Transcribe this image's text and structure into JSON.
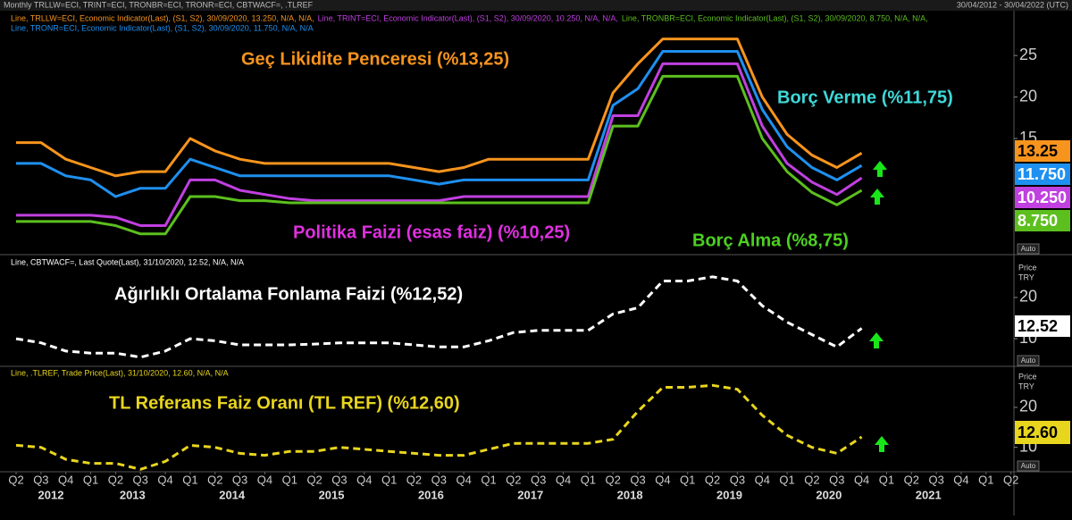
{
  "header": {
    "title": "Monthly TRLLW=ECI, TRINT=ECI, TRONBR=ECI, TRONR=ECI, CBTWACF=, .TLREF",
    "date_range": "30/04/2012 - 30/04/2022 (UTC)"
  },
  "x_axis": {
    "xlim": [
      2012.16,
      2022.28
    ],
    "xticks": [
      {
        "value": 2012.25,
        "label": "Q2"
      },
      {
        "value": 2012.5,
        "label": "Q3"
      },
      {
        "value": 2012.75,
        "label": "Q4"
      },
      {
        "value": 2013,
        "label": "Q1"
      },
      {
        "value": 2013.25,
        "label": "Q2"
      },
      {
        "value": 2013.5,
        "label": "Q3"
      },
      {
        "value": 2013.75,
        "label": "Q4"
      },
      {
        "value": 2014,
        "label": "Q1"
      },
      {
        "value": 2014.25,
        "label": "Q2"
      },
      {
        "value": 2014.5,
        "label": "Q3"
      },
      {
        "value": 2014.75,
        "label": "Q4"
      },
      {
        "value": 2015,
        "label": "Q1"
      },
      {
        "value": 2015.25,
        "label": "Q2"
      },
      {
        "value": 2015.5,
        "label": "Q3"
      },
      {
        "value": 2015.75,
        "label": "Q4"
      },
      {
        "value": 2016,
        "label": "Q1"
      },
      {
        "value": 2016.25,
        "label": "Q2"
      },
      {
        "value": 2016.5,
        "label": "Q3"
      },
      {
        "value": 2016.75,
        "label": "Q4"
      },
      {
        "value": 2017,
        "label": "Q1"
      },
      {
        "value": 2017.25,
        "label": "Q2"
      },
      {
        "value": 2017.5,
        "label": "Q3"
      },
      {
        "value": 2017.75,
        "label": "Q4"
      },
      {
        "value": 2018,
        "label": "Q1"
      },
      {
        "value": 2018.25,
        "label": "Q2"
      },
      {
        "value": 2018.5,
        "label": "Q3"
      },
      {
        "value": 2018.75,
        "label": "Q4"
      },
      {
        "value": 2019,
        "label": "Q1"
      },
      {
        "value": 2019.25,
        "label": "Q2"
      },
      {
        "value": 2019.5,
        "label": "Q3"
      },
      {
        "value": 2019.75,
        "label": "Q4"
      },
      {
        "value": 2020,
        "label": "Q1"
      },
      {
        "value": 2020.25,
        "label": "Q2"
      },
      {
        "value": 2020.5,
        "label": "Q3"
      },
      {
        "value": 2020.75,
        "label": "Q4"
      },
      {
        "value": 2021,
        "label": "Q1"
      },
      {
        "value": 2021.25,
        "label": "Q2"
      },
      {
        "value": 2021.5,
        "label": "Q3"
      },
      {
        "value": 2021.75,
        "label": "Q4"
      },
      {
        "value": 2022,
        "label": "Q1"
      },
      {
        "value": 2022.25,
        "label": "Q2"
      }
    ],
    "year_labels": [
      {
        "value": 2012.6,
        "label": "2012"
      },
      {
        "value": 2013.42,
        "label": "2013"
      },
      {
        "value": 2014.42,
        "label": "2014"
      },
      {
        "value": 2015.42,
        "label": "2015"
      },
      {
        "value": 2016.42,
        "label": "2016"
      },
      {
        "value": 2017.42,
        "label": "2017"
      },
      {
        "value": 2018.42,
        "label": "2018"
      },
      {
        "value": 2019.42,
        "label": "2019"
      },
      {
        "value": 2020.42,
        "label": "2020"
      },
      {
        "value": 2021.42,
        "label": "2021"
      }
    ]
  },
  "chart_data": [
    {
      "type": "line",
      "button": "Auto",
      "ylim": [
        1,
        30.4
      ],
      "yticks": [
        15,
        20,
        25
      ],
      "line_style": "solid",
      "x": [
        2012.25,
        2012.5,
        2012.75,
        2013,
        2013.25,
        2013.5,
        2013.75,
        2014,
        2014.25,
        2014.5,
        2014.75,
        2015,
        2015.25,
        2015.5,
        2015.75,
        2016,
        2016.25,
        2016.5,
        2016.75,
        2017,
        2017.25,
        2017.5,
        2017.75,
        2018,
        2018.25,
        2018.5,
        2018.75,
        2019,
        2019.25,
        2019.5,
        2019.75,
        2020,
        2020.25,
        2020.5,
        2020.75
      ],
      "series": [
        {
          "name": "Geç Likidite Penceresi (%13,25)",
          "color": "#f7941d",
          "label_color": "#f7941d",
          "last_label": "13.25",
          "legend_text": "Line, TRLLW=ECI, Economic Indicator(Last), (S1, S2), 30/09/2020, 13.250, N/A, N/A,",
          "values": [
            14.5,
            14.5,
            12.5,
            11.5,
            10.5,
            11,
            11,
            15,
            13.5,
            12.5,
            12,
            12,
            12,
            12,
            12,
            12,
            11.5,
            11,
            11.5,
            12.5,
            12.5,
            12.5,
            12.5,
            12.5,
            20.5,
            24,
            27,
            27,
            27,
            27,
            20,
            15.5,
            13,
            11.5,
            13.25
          ]
        },
        {
          "name": "Politika Faizi (esas faiz) (%10,25)",
          "color": "#c040e0",
          "label_color": "#e030e0",
          "last_label": "10.250",
          "legend_text": "Line, TRINT=ECI, Economic Indicator(Last), (S1, S2), 30/09/2020, 10.250, N/A, N/A,",
          "values": [
            5.75,
            5.75,
            5.75,
            5.75,
            5.5,
            4.5,
            4.5,
            10,
            10,
            8.75,
            8.25,
            7.75,
            7.5,
            7.5,
            7.5,
            7.5,
            7.5,
            7.5,
            8,
            8,
            8,
            8,
            8,
            8,
            17.75,
            17.75,
            24,
            24,
            24,
            24,
            16.5,
            12,
            9.75,
            8.25,
            10.25
          ]
        },
        {
          "name": "Borç Alma  (%8,75)",
          "color": "#5cbf1e",
          "label_color": "#4cd020",
          "last_label": "8.750",
          "legend_text": "Line, TRONBR=ECI, Economic Indicator(Last), (S1, S2), 30/09/2020, 8.750, N/A, N/A,",
          "values": [
            5,
            5,
            5,
            5,
            4.5,
            3.5,
            3.5,
            8,
            8,
            7.5,
            7.5,
            7.25,
            7.25,
            7.25,
            7.25,
            7.25,
            7.25,
            7.25,
            7.25,
            7.25,
            7.25,
            7.25,
            7.25,
            7.25,
            16.5,
            16.5,
            22.5,
            22.5,
            22.5,
            22.5,
            15,
            11,
            8.5,
            7,
            8.75
          ]
        },
        {
          "name": "Borç Verme (%11,75)",
          "color": "#1e90f0",
          "label_color": "#3fd8d8",
          "last_label": "11.750",
          "legend_text": "Line, TRONR=ECI, Economic Indicator(Last), (S1, S2), 30/09/2020, 11.750, N/A, N/A",
          "values": [
            12,
            12,
            10.5,
            10,
            8,
            9,
            9,
            12.5,
            11.5,
            10.5,
            10.5,
            10.5,
            10.5,
            10.5,
            10.5,
            10.5,
            10,
            9.5,
            10,
            10,
            10,
            10,
            10,
            10,
            19,
            21,
            25.5,
            25.5,
            25.5,
            25.5,
            18.5,
            14,
            11.5,
            10,
            11.75
          ]
        }
      ]
    },
    {
      "type": "line",
      "button": "Auto",
      "price_label": "Price",
      "currency_label": "TRY",
      "ylim": [
        3.3,
        29.3
      ],
      "yticks": [
        10,
        20
      ],
      "line_style": "dashed",
      "x": [
        2012.25,
        2012.5,
        2012.75,
        2013,
        2013.25,
        2013.5,
        2013.75,
        2014,
        2014.25,
        2014.5,
        2014.75,
        2015,
        2015.25,
        2015.5,
        2015.75,
        2016,
        2016.25,
        2016.5,
        2016.75,
        2017,
        2017.25,
        2017.5,
        2017.75,
        2018,
        2018.25,
        2018.5,
        2018.75,
        2019,
        2019.25,
        2019.5,
        2019.75,
        2020,
        2020.25,
        2020.5,
        2020.75
      ],
      "series": [
        {
          "name": "Ağırlıklı Ortalama Fonlama Faizi (%12,52)",
          "color": "#ffffff",
          "label_color": "#ffffff",
          "last_label": "12.52",
          "legend_text": "Line, CBTWACF=, Last Quote(Last), 31/10/2020, 12.52, N/A, N/A",
          "values": [
            10,
            9,
            7,
            6.5,
            6.5,
            5.5,
            7,
            10,
            9.5,
            8.5,
            8.5,
            8.5,
            8.7,
            9,
            9,
            9,
            8.5,
            8,
            8,
            9.5,
            11.5,
            12,
            12,
            12,
            16,
            17.5,
            24,
            24,
            25,
            24,
            18,
            14,
            11,
            8,
            12.52
          ]
        }
      ]
    },
    {
      "type": "line",
      "button": "Auto",
      "price_label": "Price",
      "currency_label": "TRY",
      "ylim": [
        3.9,
        29.8
      ],
      "yticks": [
        10,
        20
      ],
      "line_style": "dashed",
      "x": [
        2012.25,
        2012.5,
        2012.75,
        2013,
        2013.25,
        2013.5,
        2013.75,
        2014,
        2014.25,
        2014.5,
        2014.75,
        2015,
        2015.25,
        2015.5,
        2015.75,
        2016,
        2016.25,
        2016.5,
        2016.75,
        2017,
        2017.25,
        2017.5,
        2017.75,
        2018,
        2018.25,
        2018.5,
        2018.75,
        2019,
        2019.25,
        2019.5,
        2019.75,
        2020,
        2020.25,
        2020.5,
        2020.75
      ],
      "series": [
        {
          "name": "TL Referans Faiz Oranı (TL REF) (%12,60)",
          "color": "#e8d51e",
          "label_color": "#e8d51e",
          "last_label": "12.60",
          "legend_text": "Line, .TLREF, Trade Price(Last), 31/10/2020, 12.60, N/A, N/A",
          "values": [
            10.5,
            10,
            7,
            6,
            6,
            4.5,
            6.5,
            10.5,
            10,
            8.5,
            8,
            9,
            9,
            10,
            9.5,
            9,
            8.5,
            8,
            8,
            9.5,
            11,
            11,
            11,
            11,
            12,
            19,
            25,
            25,
            25.5,
            24.5,
            18,
            13,
            10,
            8.5,
            12.6
          ]
        }
      ]
    }
  ]
}
